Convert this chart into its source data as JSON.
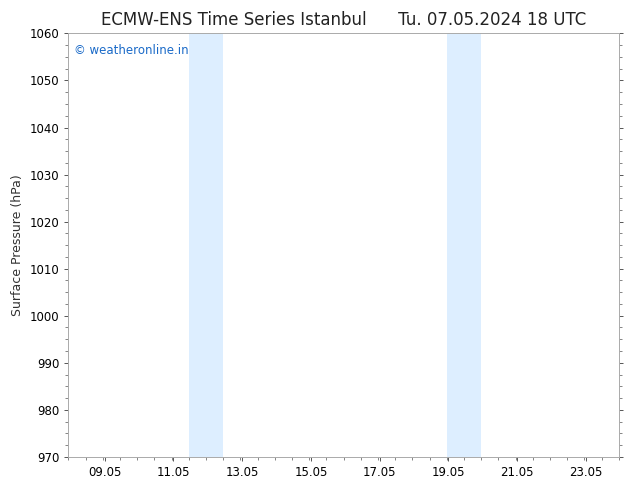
{
  "title_left": "ECMW-ENS Time Series Istanbul",
  "title_right": "Tu. 07.05.2024 18 UTC",
  "ylabel": "Surface Pressure (hPa)",
  "ylim": [
    970,
    1060
  ],
  "yticks": [
    970,
    980,
    990,
    1000,
    1010,
    1020,
    1030,
    1040,
    1050,
    1060
  ],
  "xlim": [
    8.0,
    24.0
  ],
  "xticks": [
    9.05,
    11.05,
    13.05,
    15.05,
    17.05,
    19.05,
    21.05,
    23.05
  ],
  "xtick_labels": [
    "09.05",
    "11.05",
    "13.05",
    "15.05",
    "17.05",
    "19.05",
    "21.05",
    "23.05"
  ],
  "shaded_regions": [
    {
      "xmin": 11.5,
      "xmax": 12.5
    },
    {
      "xmin": 19.0,
      "xmax": 20.0
    }
  ],
  "shade_color": "#ddeeff",
  "background_color": "#ffffff",
  "plot_bg_color": "#ffffff",
  "watermark_text": "© weatheronline.in",
  "watermark_color": "#1a6ac8",
  "title_fontsize": 12,
  "tick_fontsize": 8.5,
  "ylabel_fontsize": 9,
  "watermark_fontsize": 8.5,
  "spine_color": "#aaaaaa",
  "tick_color": "#555555"
}
